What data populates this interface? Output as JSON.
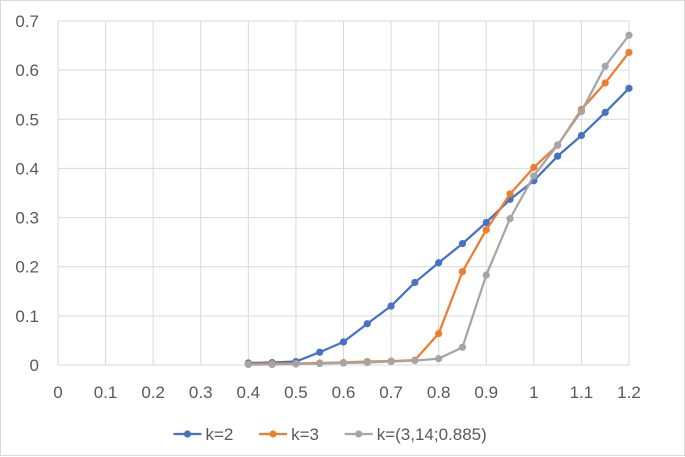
{
  "chart_data": {
    "type": "line",
    "title": "",
    "xlabel": "",
    "ylabel": "",
    "xlim": [
      0,
      1.2
    ],
    "ylim": [
      0,
      0.7
    ],
    "x_ticks": [
      "0",
      "0.1",
      "0.2",
      "0.3",
      "0.4",
      "0.5",
      "0.6",
      "0.7",
      "0.8",
      "0.9",
      "1",
      "1.1",
      "1.2"
    ],
    "y_ticks": [
      "0",
      "0.1",
      "0.2",
      "0.3",
      "0.4",
      "0.5",
      "0.6",
      "0.7"
    ],
    "grid": true,
    "legend_position": "bottom",
    "x": [
      0.4,
      0.45,
      0.5,
      0.55,
      0.6,
      0.65,
      0.7,
      0.75,
      0.8,
      0.85,
      0.9,
      0.95,
      1.0,
      1.05,
      1.1,
      1.15,
      1.2
    ],
    "series": [
      {
        "name": "k=2",
        "color": "#4472c4",
        "values": [
          0.004,
          0.005,
          0.007,
          0.026,
          0.047,
          0.084,
          0.12,
          0.168,
          0.208,
          0.247,
          0.29,
          0.337,
          0.375,
          0.425,
          0.467,
          0.514,
          0.563
        ]
      },
      {
        "name": "k=3",
        "color": "#ed7d31",
        "values": [
          0.002,
          0.003,
          0.003,
          0.004,
          0.005,
          0.007,
          0.008,
          0.01,
          0.064,
          0.19,
          0.275,
          0.348,
          0.402,
          0.447,
          0.52,
          0.574,
          0.636
        ]
      },
      {
        "name": "k=(3,14;0.885)",
        "color": "#a5a5a5",
        "values": [
          0.001,
          0.001,
          0.002,
          0.003,
          0.004,
          0.005,
          0.007,
          0.009,
          0.013,
          0.036,
          0.183,
          0.298,
          0.385,
          0.448,
          0.516,
          0.608,
          0.671
        ]
      }
    ]
  }
}
